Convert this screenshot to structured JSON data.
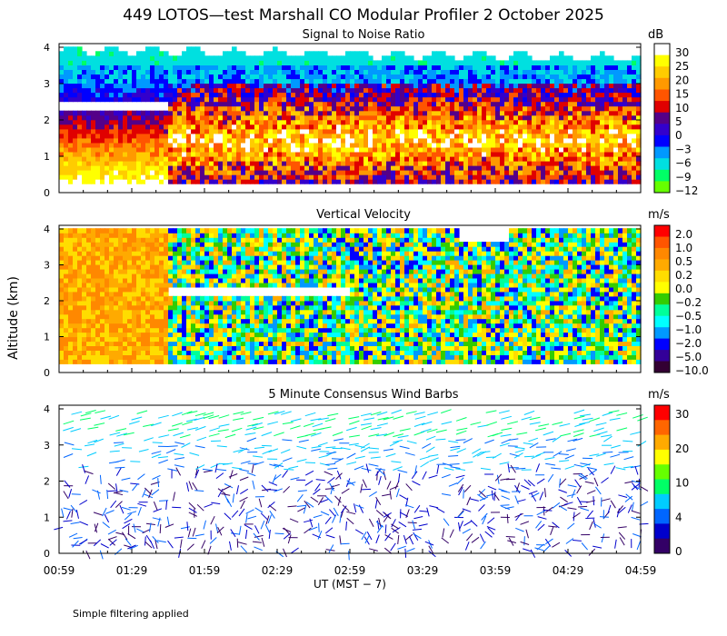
{
  "title": "449 LOTOS—test Marshall CO Modular Profiler  2 October 2025",
  "footnote": "Simple filtering applied",
  "chart_data": [
    {
      "type": "heatmap",
      "title": "Signal to Noise Ratio",
      "units": "dB",
      "ylabel": "Altitude (km)",
      "ylim": [
        0,
        4
      ],
      "yticks": [
        "0",
        "1",
        "2",
        "3",
        "4"
      ],
      "colorbar_labels": [
        "30",
        "25",
        "20",
        "15",
        "10",
        "5",
        "0",
        "−3",
        "−6",
        "−9",
        "−12"
      ],
      "colors": [
        "#ffffff",
        "#ffff00",
        "#ffcc00",
        "#ff9900",
        "#ff5500",
        "#e00000",
        "#550088",
        "#3300cc",
        "#0000ff",
        "#0099ff",
        "#00e0e0",
        "#00ff66",
        "#66ff00"
      ]
    },
    {
      "type": "heatmap",
      "title": "Vertical Velocity",
      "units": "m/s",
      "ylabel": "Altitude (km)",
      "ylim": [
        0,
        4
      ],
      "yticks": [
        "0",
        "1",
        "2",
        "3",
        "4"
      ],
      "colorbar_labels": [
        "2.0",
        "1.0",
        "0.5",
        "0.2",
        "0.0",
        "−0.2",
        "−0.5",
        "−1.0",
        "−2.0",
        "−5.0",
        "−10.0"
      ],
      "colors": [
        "#ff0000",
        "#ff5500",
        "#ff8800",
        "#ffaa00",
        "#ffdd00",
        "#ffff00",
        "#33cc00",
        "#00ff99",
        "#00ffff",
        "#0099ff",
        "#0000ff",
        "#330099",
        "#330033"
      ]
    },
    {
      "type": "scatter",
      "title": "5 Minute Consensus Wind Barbs",
      "units": "m/s",
      "ylabel": "Altitude (km)",
      "ylim": [
        0,
        4
      ],
      "yticks": [
        "0",
        "1",
        "2",
        "3",
        "4"
      ],
      "colorbar_labels": [
        "30",
        "20",
        "10",
        "4",
        "0"
      ],
      "colors": [
        "#ff0000",
        "#ff6600",
        "#ffaa00",
        "#ffff00",
        "#66ff00",
        "#00ff66",
        "#00ccff",
        "#0066ff",
        "#0000cc",
        "#330066"
      ]
    }
  ],
  "xaxis": {
    "label": "UT  (MST − 7)",
    "ticks": [
      "00:59",
      "01:29",
      "01:59",
      "02:29",
      "02:59",
      "03:29",
      "03:59",
      "04:29",
      "04:59"
    ]
  }
}
